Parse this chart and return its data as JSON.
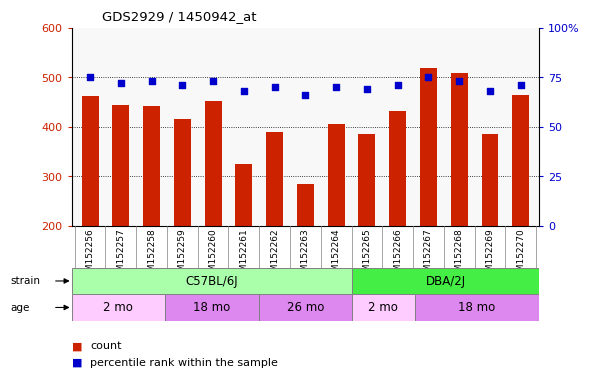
{
  "title": "GDS2929 / 1450942_at",
  "samples": [
    "GSM152256",
    "GSM152257",
    "GSM152258",
    "GSM152259",
    "GSM152260",
    "GSM152261",
    "GSM152262",
    "GSM152263",
    "GSM152264",
    "GSM152265",
    "GSM152266",
    "GSM152267",
    "GSM152268",
    "GSM152269",
    "GSM152270"
  ],
  "counts": [
    462,
    445,
    442,
    415,
    453,
    325,
    390,
    285,
    405,
    385,
    432,
    518,
    508,
    385,
    465
  ],
  "percentile_ranks": [
    75,
    72,
    73,
    71,
    73,
    68,
    70,
    66,
    70,
    69,
    71,
    75,
    73,
    68,
    71
  ],
  "ylim_left": [
    200,
    600
  ],
  "yticks_left": [
    200,
    300,
    400,
    500,
    600
  ],
  "yticks_right": [
    0,
    25,
    50,
    75,
    100
  ],
  "ytick_labels_right": [
    "0",
    "25",
    "50",
    "75",
    "100%"
  ],
  "bar_color": "#cc2200",
  "dot_color": "#0000cc",
  "strain_groups": [
    {
      "label": "C57BL/6J",
      "start": 0,
      "end": 9,
      "color": "#aaffaa"
    },
    {
      "label": "DBA/2J",
      "start": 9,
      "end": 15,
      "color": "#44ee44"
    }
  ],
  "age_groups": [
    {
      "label": "2 mo",
      "start": 0,
      "end": 3,
      "color": "#ffccff"
    },
    {
      "label": "18 mo",
      "start": 3,
      "end": 6,
      "color": "#dd88ee"
    },
    {
      "label": "26 mo",
      "start": 6,
      "end": 9,
      "color": "#dd88ee"
    },
    {
      "label": "2 mo",
      "start": 9,
      "end": 11,
      "color": "#ffccff"
    },
    {
      "label": "18 mo",
      "start": 11,
      "end": 15,
      "color": "#dd88ee"
    }
  ],
  "tick_label_color_left": "#cc2200",
  "tick_label_color_right": "#0000cc",
  "bg_color": "#f0f0f0"
}
